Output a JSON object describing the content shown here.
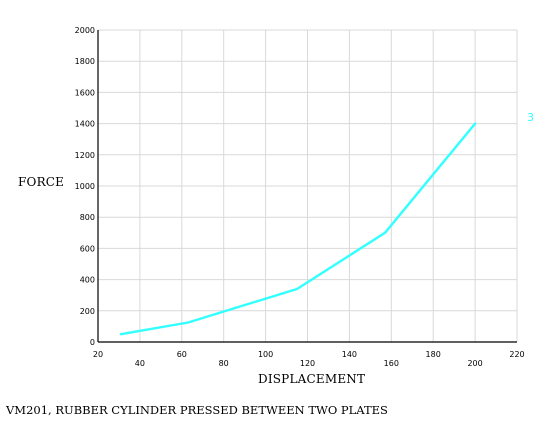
{
  "chart_data": {
    "type": "line",
    "xlabel": "DISPLACEMENT",
    "ylabel": "FORCE",
    "xlim": [
      20,
      220
    ],
    "ylim": [
      0,
      2000
    ],
    "x_ticks_lower": [
      20,
      60,
      100,
      140,
      180,
      220
    ],
    "x_ticks_upper": [
      40,
      80,
      120,
      160,
      200
    ],
    "y_ticks": [
      0,
      200,
      400,
      600,
      800,
      1000,
      1200,
      1400,
      1600,
      1800,
      2000
    ],
    "grid": true,
    "series": [
      {
        "name": "3",
        "color": "#33ffff",
        "x": [
          31,
          63,
          115,
          157,
          200
        ],
        "y": [
          50,
          125,
          340,
          700,
          1400
        ]
      }
    ]
  },
  "caption": "VM201, RUBBER CYLINDER PRESSED BETWEEN TWO PLATES",
  "colors": {
    "curve": "#33ffff",
    "grid": "#d9d9d9",
    "axis": "#000000",
    "background": "#ffffff"
  }
}
